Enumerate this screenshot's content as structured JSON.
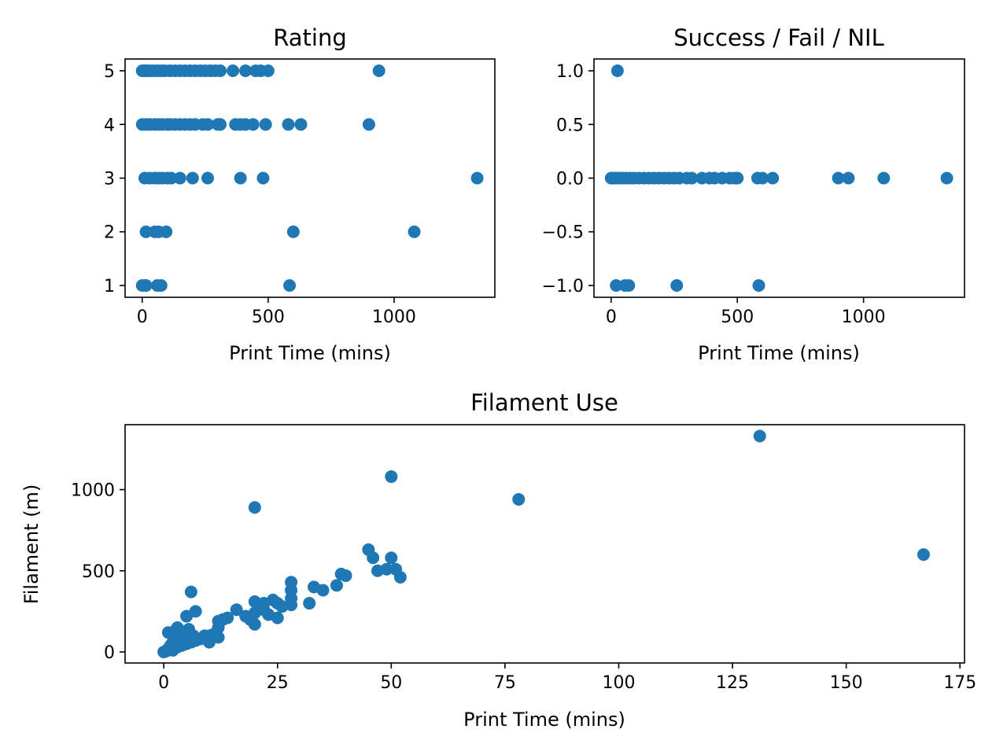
{
  "chart_data": [
    {
      "id": "rating",
      "type": "scatter",
      "title": "Rating",
      "xlabel": "Print Time (mins)",
      "ylabel": "",
      "xlim": [
        -68,
        1400
      ],
      "ylim": [
        0.78,
        5.22
      ],
      "xticks": [
        0,
        500,
        1000
      ],
      "xtick_labels": [
        "0",
        "500",
        "1000"
      ],
      "yticks": [
        1,
        2,
        3,
        4,
        5
      ],
      "ytick_labels": [
        "1",
        "2",
        "3",
        "4",
        "5"
      ],
      "color": "#1f77b4",
      "points": [
        [
          0,
          5
        ],
        [
          10,
          5
        ],
        [
          20,
          5
        ],
        [
          30,
          5
        ],
        [
          45,
          5
        ],
        [
          60,
          5
        ],
        [
          75,
          5
        ],
        [
          90,
          5
        ],
        [
          110,
          5
        ],
        [
          130,
          5
        ],
        [
          150,
          5
        ],
        [
          170,
          5
        ],
        [
          190,
          5
        ],
        [
          210,
          5
        ],
        [
          230,
          5
        ],
        [
          250,
          5
        ],
        [
          270,
          5
        ],
        [
          290,
          5
        ],
        [
          310,
          5
        ],
        [
          360,
          5
        ],
        [
          410,
          5
        ],
        [
          450,
          5
        ],
        [
          470,
          5
        ],
        [
          500,
          5
        ],
        [
          940,
          5
        ],
        [
          0,
          4
        ],
        [
          15,
          4
        ],
        [
          30,
          4
        ],
        [
          50,
          4
        ],
        [
          65,
          4
        ],
        [
          80,
          4
        ],
        [
          100,
          4
        ],
        [
          110,
          4
        ],
        [
          130,
          4
        ],
        [
          150,
          4
        ],
        [
          170,
          4
        ],
        [
          190,
          4
        ],
        [
          210,
          4
        ],
        [
          240,
          4
        ],
        [
          260,
          4
        ],
        [
          300,
          4
        ],
        [
          310,
          4
        ],
        [
          370,
          4
        ],
        [
          390,
          4
        ],
        [
          410,
          4
        ],
        [
          440,
          4
        ],
        [
          490,
          4
        ],
        [
          580,
          4
        ],
        [
          630,
          4
        ],
        [
          900,
          4
        ],
        [
          10,
          3
        ],
        [
          30,
          3
        ],
        [
          50,
          3
        ],
        [
          65,
          3
        ],
        [
          80,
          3
        ],
        [
          100,
          3
        ],
        [
          115,
          3
        ],
        [
          150,
          3
        ],
        [
          200,
          3
        ],
        [
          260,
          3
        ],
        [
          390,
          3
        ],
        [
          480,
          3
        ],
        [
          1330,
          3
        ],
        [
          15,
          2
        ],
        [
          50,
          2
        ],
        [
          65,
          2
        ],
        [
          95,
          2
        ],
        [
          600,
          2
        ],
        [
          1080,
          2
        ],
        [
          0,
          1
        ],
        [
          15,
          1
        ],
        [
          60,
          1
        ],
        [
          75,
          1
        ],
        [
          585,
          1
        ]
      ]
    },
    {
      "id": "success",
      "type": "scatter",
      "title": "Success / Fail / NIL",
      "xlabel": "Print Time (mins)",
      "ylabel": "",
      "xlim": [
        -68,
        1400
      ],
      "ylim": [
        -1.11,
        1.11
      ],
      "xticks": [
        0,
        500,
        1000
      ],
      "xtick_labels": [
        "0",
        "500",
        "1000"
      ],
      "yticks": [
        1.0,
        0.5,
        0.0,
        -0.5,
        -1.0
      ],
      "ytick_labels": [
        "1.0",
        "0.5",
        "0.0",
        "−0.5",
        "−1.0"
      ],
      "color": "#1f77b4",
      "points": [
        [
          25,
          1
        ],
        [
          0,
          0
        ],
        [
          10,
          0
        ],
        [
          20,
          0
        ],
        [
          30,
          0
        ],
        [
          45,
          0
        ],
        [
          60,
          0
        ],
        [
          75,
          0
        ],
        [
          90,
          0
        ],
        [
          110,
          0
        ],
        [
          130,
          0
        ],
        [
          150,
          0
        ],
        [
          170,
          0
        ],
        [
          190,
          0
        ],
        [
          210,
          0
        ],
        [
          230,
          0
        ],
        [
          250,
          0
        ],
        [
          270,
          0
        ],
        [
          300,
          0
        ],
        [
          320,
          0
        ],
        [
          360,
          0
        ],
        [
          390,
          0
        ],
        [
          410,
          0
        ],
        [
          440,
          0
        ],
        [
          470,
          0
        ],
        [
          490,
          0
        ],
        [
          500,
          0
        ],
        [
          580,
          0
        ],
        [
          600,
          0
        ],
        [
          640,
          0
        ],
        [
          900,
          0
        ],
        [
          940,
          0
        ],
        [
          1080,
          0
        ],
        [
          1330,
          0
        ],
        [
          20,
          -1
        ],
        [
          55,
          -1
        ],
        [
          70,
          -1
        ],
        [
          260,
          -1
        ],
        [
          585,
          -1
        ]
      ]
    },
    {
      "id": "filament",
      "type": "scatter",
      "title": "Filament Use",
      "xlabel": "Print Time (mins)",
      "ylabel": "Filament (m)",
      "xlim": [
        -8.5,
        176
      ],
      "ylim": [
        -68,
        1400
      ],
      "xticks": [
        0,
        25,
        50,
        75,
        100,
        125,
        150,
        175
      ],
      "xtick_labels": [
        "0",
        "25",
        "50",
        "75",
        "100",
        "125",
        "150",
        "175"
      ],
      "yticks": [
        0,
        500,
        1000
      ],
      "ytick_labels": [
        "0",
        "500",
        "1000"
      ],
      "color": "#1f77b4",
      "points": [
        [
          0,
          0
        ],
        [
          0.5,
          5
        ],
        [
          1,
          20
        ],
        [
          1,
          120
        ],
        [
          1.5,
          40
        ],
        [
          2,
          60
        ],
        [
          2,
          10
        ],
        [
          2.5,
          130
        ],
        [
          3,
          30
        ],
        [
          3,
          150
        ],
        [
          3.5,
          90
        ],
        [
          4,
          80
        ],
        [
          4,
          40
        ],
        [
          4.5,
          110
        ],
        [
          5,
          50
        ],
        [
          5,
          220
        ],
        [
          5.5,
          140
        ],
        [
          6,
          370
        ],
        [
          6,
          60
        ],
        [
          6.5,
          100
        ],
        [
          7,
          250
        ],
        [
          7,
          70
        ],
        [
          8,
          80
        ],
        [
          9,
          100
        ],
        [
          10,
          60
        ],
        [
          10,
          100
        ],
        [
          11,
          110
        ],
        [
          12,
          90
        ],
        [
          12,
          150
        ],
        [
          12,
          190
        ],
        [
          13,
          200
        ],
        [
          14,
          210
        ],
        [
          16,
          260
        ],
        [
          18,
          220
        ],
        [
          19,
          200
        ],
        [
          20,
          170
        ],
        [
          20,
          240
        ],
        [
          20,
          310
        ],
        [
          20,
          890
        ],
        [
          21,
          280
        ],
        [
          22,
          260
        ],
        [
          22,
          300
        ],
        [
          23,
          230
        ],
        [
          24,
          320
        ],
        [
          25,
          300
        ],
        [
          25,
          210
        ],
        [
          26,
          280
        ],
        [
          28,
          290
        ],
        [
          28,
          330
        ],
        [
          28,
          380
        ],
        [
          28,
          430
        ],
        [
          32,
          300
        ],
        [
          33,
          400
        ],
        [
          35,
          380
        ],
        [
          38,
          410
        ],
        [
          39,
          480
        ],
        [
          40,
          470
        ],
        [
          45,
          630
        ],
        [
          46,
          580
        ],
        [
          47,
          500
        ],
        [
          49,
          510
        ],
        [
          50,
          1080
        ],
        [
          50,
          580
        ],
        [
          51,
          510
        ],
        [
          52,
          460
        ],
        [
          78,
          940
        ],
        [
          131,
          1330
        ],
        [
          167,
          600
        ]
      ]
    }
  ]
}
